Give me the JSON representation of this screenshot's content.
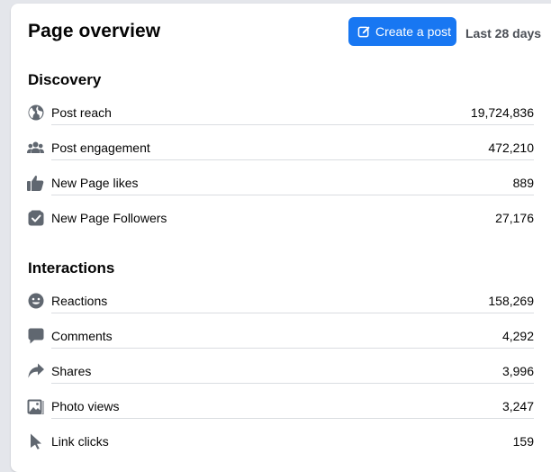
{
  "header": {
    "title": "Page overview",
    "create_label": "Create a post",
    "range_label": "Last 28 days",
    "accent_color": "#1877f2"
  },
  "discovery": {
    "title": "Discovery",
    "items": [
      {
        "icon": "globe-icon",
        "label": "Post reach",
        "value": "19,724,836"
      },
      {
        "icon": "people-icon",
        "label": "Post engagement",
        "value": "472,210"
      },
      {
        "icon": "thumbs-up-icon",
        "label": "New Page likes",
        "value": "889"
      },
      {
        "icon": "follow-box-icon",
        "label": "New Page Followers",
        "value": "27,176"
      }
    ]
  },
  "interactions": {
    "title": "Interactions",
    "items": [
      {
        "icon": "smiley-icon",
        "label": "Reactions",
        "value": "158,269"
      },
      {
        "icon": "comment-bubble-icon",
        "label": "Comments",
        "value": "4,292"
      },
      {
        "icon": "share-arrow-icon",
        "label": "Shares",
        "value": "3,996"
      },
      {
        "icon": "photo-icon",
        "label": "Photo views",
        "value": "3,247"
      },
      {
        "icon": "cursor-icon",
        "label": "Link clicks",
        "value": "159"
      }
    ]
  }
}
